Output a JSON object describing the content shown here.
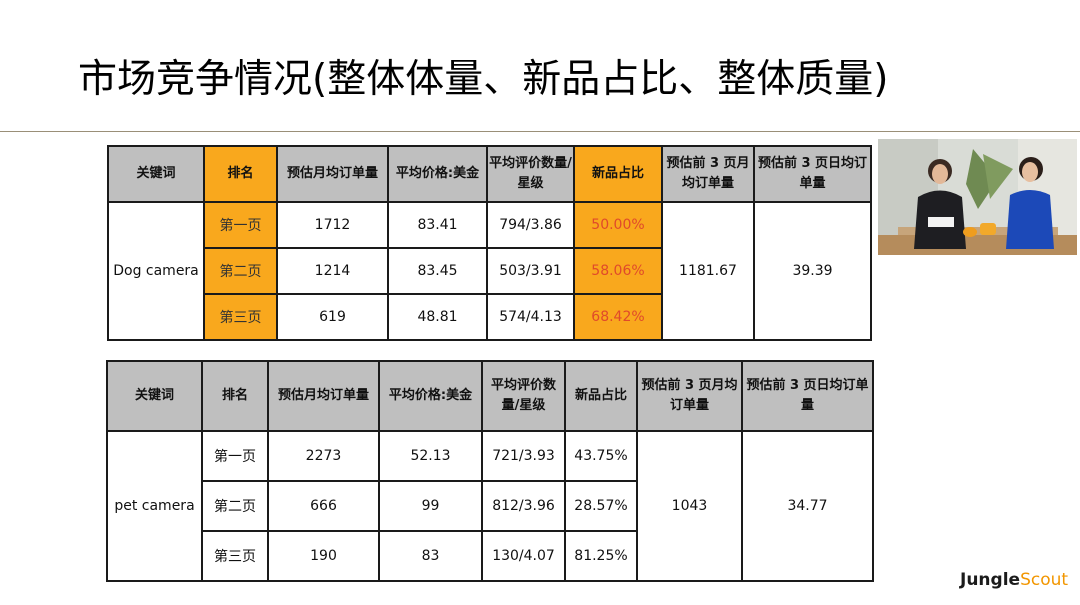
{
  "slide": {
    "title": "市场竞争情况(整体体量、新品占比、整体质量)"
  },
  "table1": {
    "headers": [
      "关键词",
      "排名",
      "预估月均订单量",
      "平均价格:美金",
      "平均评价数量/星级",
      "新品占比",
      "预估前 3 页月均订单量",
      "预估前 3 页日均订单量"
    ],
    "keyword": "Dog camera",
    "rows": [
      {
        "rank": "第一页",
        "monthly": "1712",
        "price": "83.41",
        "reviews": "794/3.86",
        "new_ratio": "50.00%"
      },
      {
        "rank": "第二页",
        "monthly": "1214",
        "price": "83.45",
        "reviews": "503/3.91",
        "new_ratio": "58.06%"
      },
      {
        "rank": "第三页",
        "monthly": "619",
        "price": "48.81",
        "reviews": "574/4.13",
        "new_ratio": "68.42%"
      }
    ],
    "top3_monthly": "1181.67",
    "top3_daily": "39.39",
    "highlight_color": "#f9a81d",
    "header_color": "#bfbfbf"
  },
  "table2": {
    "headers": [
      "关键词",
      "排名",
      "预估月均订单量",
      "平均价格:美金",
      "平均评价数量/星级",
      "新品占比",
      "预估前 3 页月均订单量",
      "预估前 3 页日均订单量"
    ],
    "keyword": "pet camera",
    "rows": [
      {
        "rank": "第一页",
        "monthly": "2273",
        "price": "52.13",
        "reviews": "721/3.93",
        "new_ratio": "43.75%"
      },
      {
        "rank": "第二页",
        "monthly": "666",
        "price": "99",
        "reviews": "812/3.96",
        "new_ratio": "28.57%"
      },
      {
        "rank": "第三页",
        "monthly": "190",
        "price": "83",
        "reviews": "130/4.07",
        "new_ratio": "81.25%"
      }
    ],
    "top3_monthly": "1043",
    "top3_daily": "34.77"
  },
  "video": {
    "icon": "presenters-video-thumbnail"
  },
  "logo": {
    "word1": "Jungle",
    "word2": "Scout",
    "accent_color": "#f29600"
  }
}
